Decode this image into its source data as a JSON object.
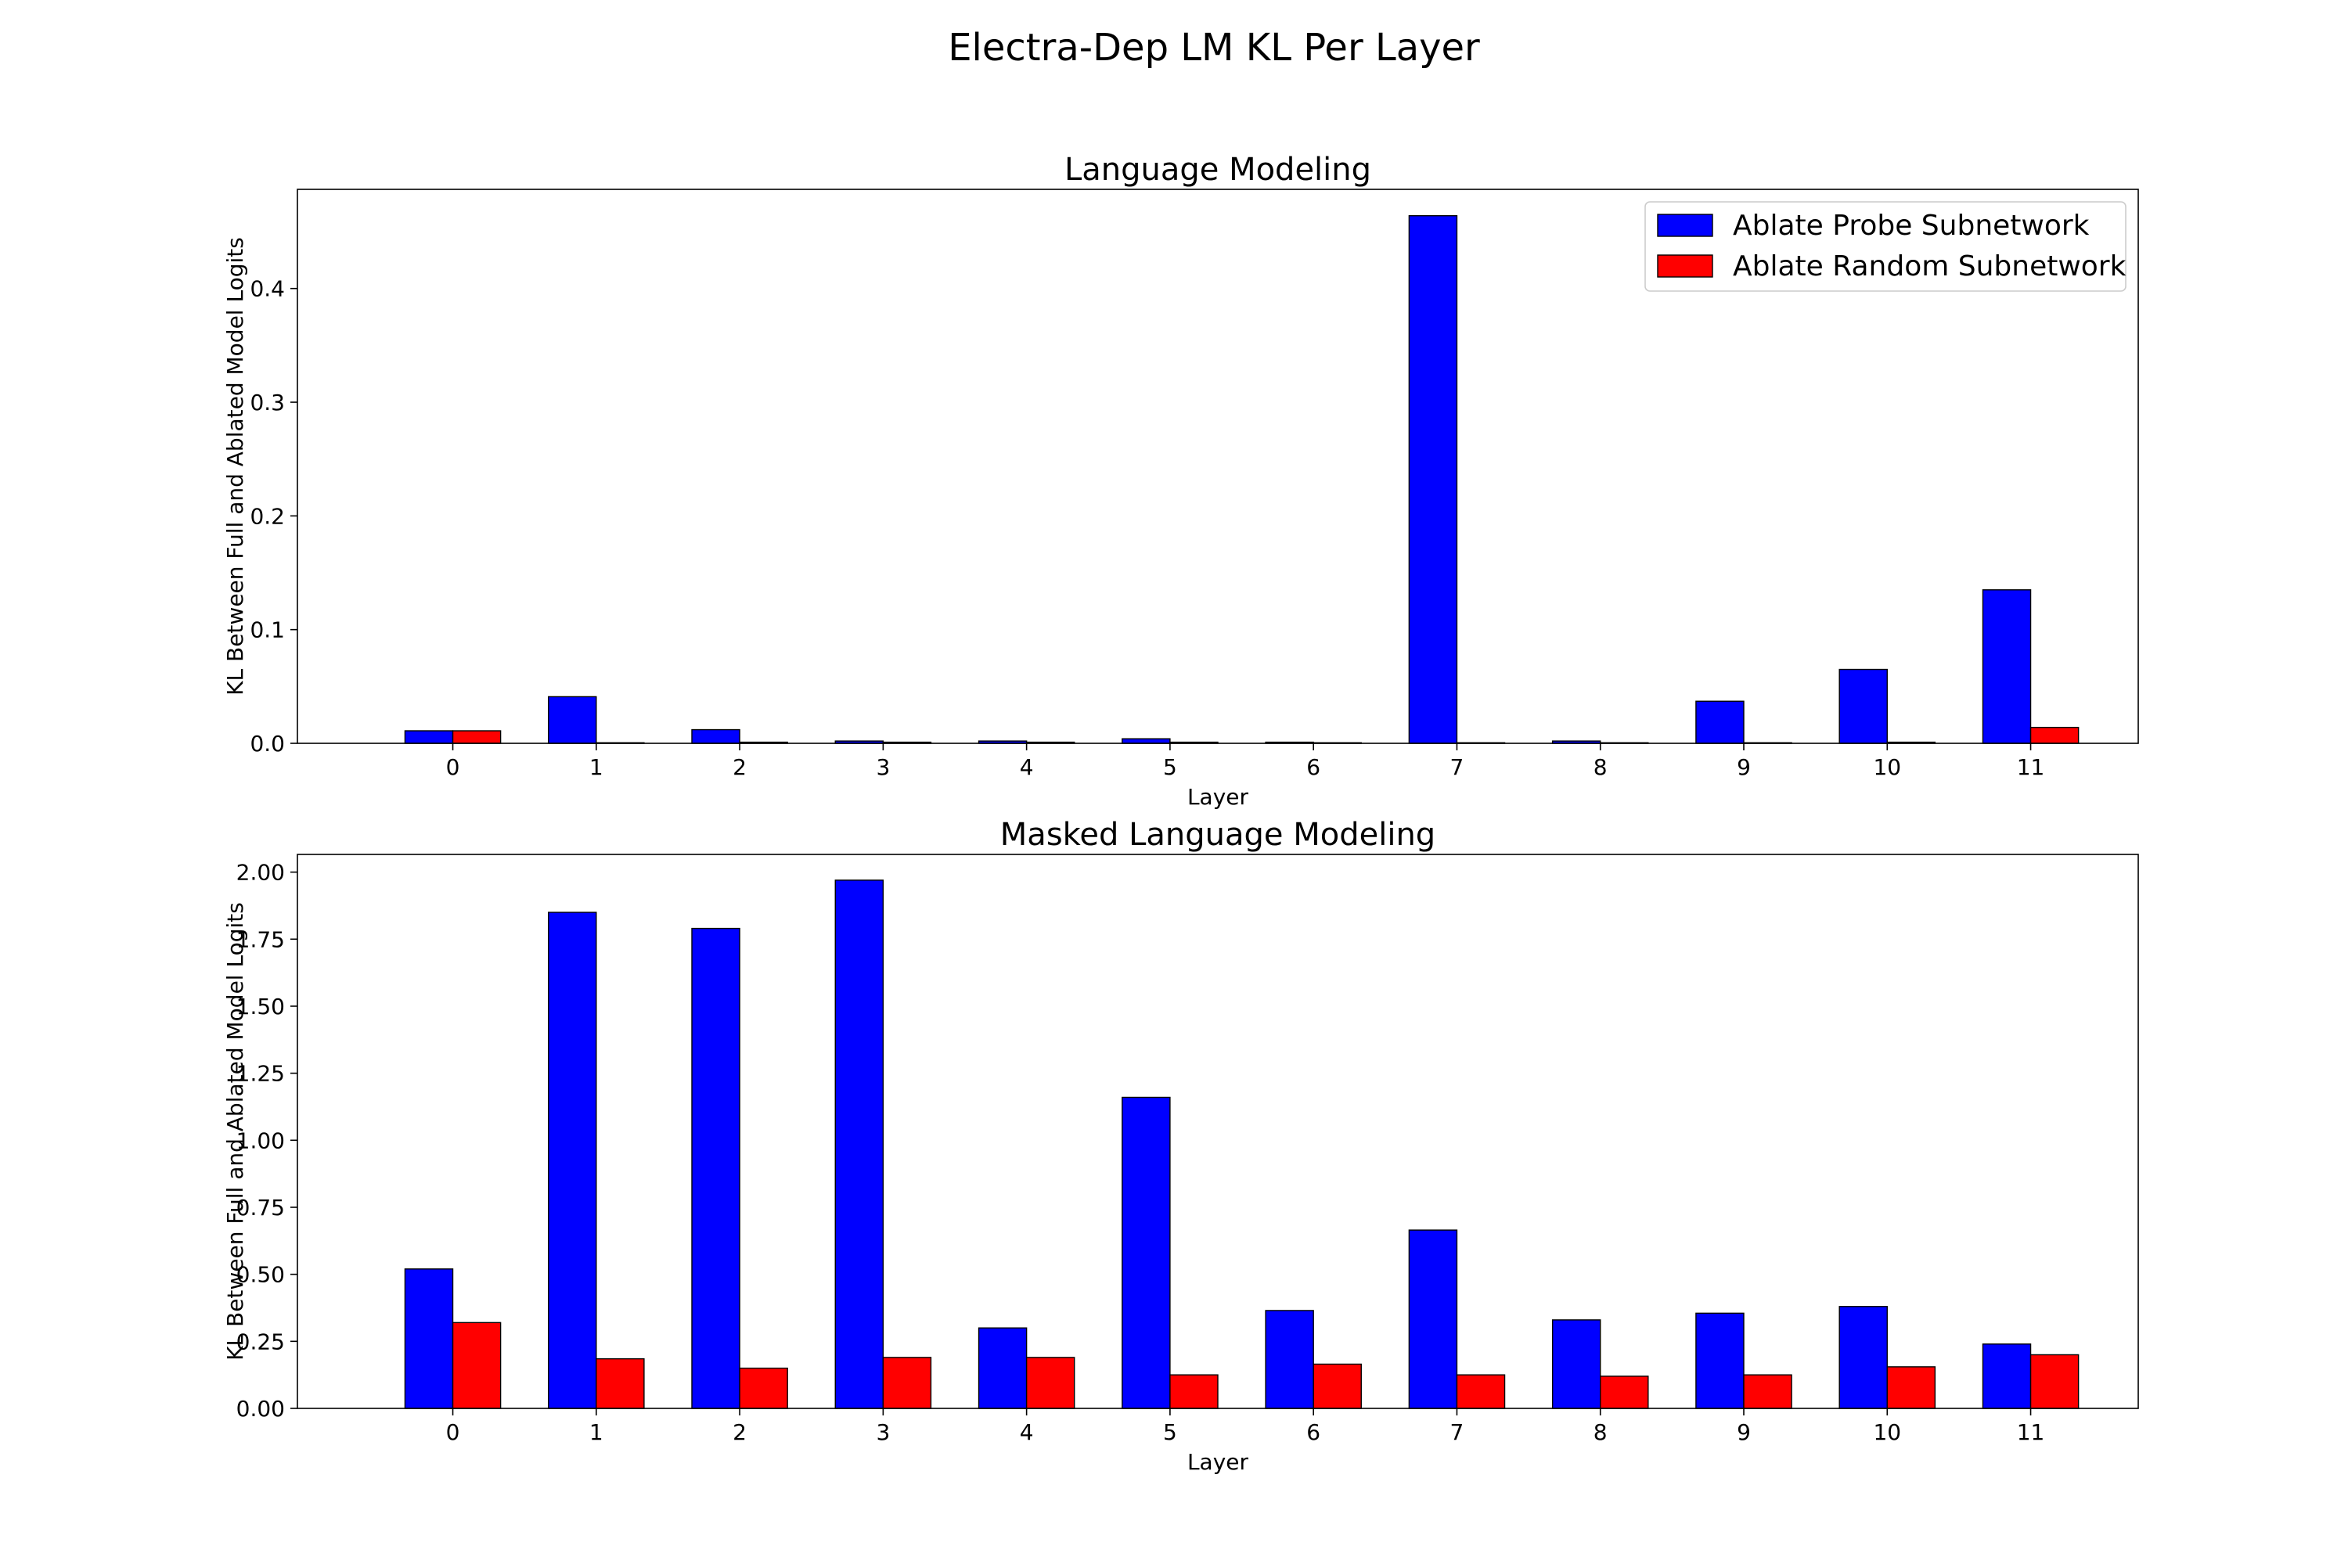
{
  "figure": {
    "suptitle": "Electra-Dep LM KL Per Layer"
  },
  "legend": {
    "placement": "top-right",
    "entries": [
      {
        "label": "Ablate Probe Subnetwork",
        "color": "#0000ff"
      },
      {
        "label": "Ablate Random Subnetwork",
        "color": "#ff0000"
      }
    ]
  },
  "chart_data": [
    {
      "type": "bar",
      "title": "Language Modeling",
      "xlabel": "Layer",
      "ylabel": "KL Between Full and Ablated Model Logits",
      "categories": [
        "0",
        "1",
        "2",
        "3",
        "4",
        "5",
        "6",
        "7",
        "8",
        "9",
        "10",
        "11"
      ],
      "ylim": [
        0,
        0.4872
      ],
      "yticks": [
        0.0,
        0.1,
        0.2,
        0.3,
        0.4
      ],
      "ytick_labels": [
        "0.0",
        "0.1",
        "0.2",
        "0.3",
        "0.4"
      ],
      "grid": false,
      "legend": true,
      "series": [
        {
          "name": "Ablate Probe Subnetwork",
          "color": "#0000ff",
          "values": [
            0.011,
            0.041,
            0.012,
            0.002,
            0.002,
            0.004,
            0.001,
            0.464,
            0.002,
            0.037,
            0.065,
            0.135
          ]
        },
        {
          "name": "Ablate Random Subnetwork",
          "color": "#ff0000",
          "values": [
            0.011,
            0.0005,
            0.001,
            0.001,
            0.001,
            0.001,
            0.0005,
            0.0005,
            0.0005,
            0.0005,
            0.001,
            0.014
          ]
        }
      ]
    },
    {
      "type": "bar",
      "title": "Masked Language Modeling",
      "xlabel": "Layer",
      "ylabel": "KL Between Full and Ablated Model Logits",
      "categories": [
        "0",
        "1",
        "2",
        "3",
        "4",
        "5",
        "6",
        "7",
        "8",
        "9",
        "10",
        "11"
      ],
      "ylim": [
        0,
        2.066
      ],
      "yticks": [
        0.0,
        0.25,
        0.5,
        0.75,
        1.0,
        1.25,
        1.5,
        1.75,
        2.0
      ],
      "ytick_labels": [
        "0.00",
        "0.25",
        "0.50",
        "0.75",
        "1.00",
        "1.25",
        "1.50",
        "1.75",
        "2.00"
      ],
      "grid": false,
      "legend": false,
      "series": [
        {
          "name": "Ablate Probe Subnetwork",
          "color": "#0000ff",
          "values": [
            0.52,
            1.85,
            1.79,
            1.97,
            0.3,
            1.16,
            0.365,
            0.665,
            0.33,
            0.355,
            0.38,
            0.24
          ]
        },
        {
          "name": "Ablate Random Subnetwork",
          "color": "#ff0000",
          "values": [
            0.32,
            0.185,
            0.15,
            0.19,
            0.19,
            0.125,
            0.165,
            0.125,
            0.12,
            0.125,
            0.155,
            0.2
          ]
        }
      ]
    }
  ]
}
